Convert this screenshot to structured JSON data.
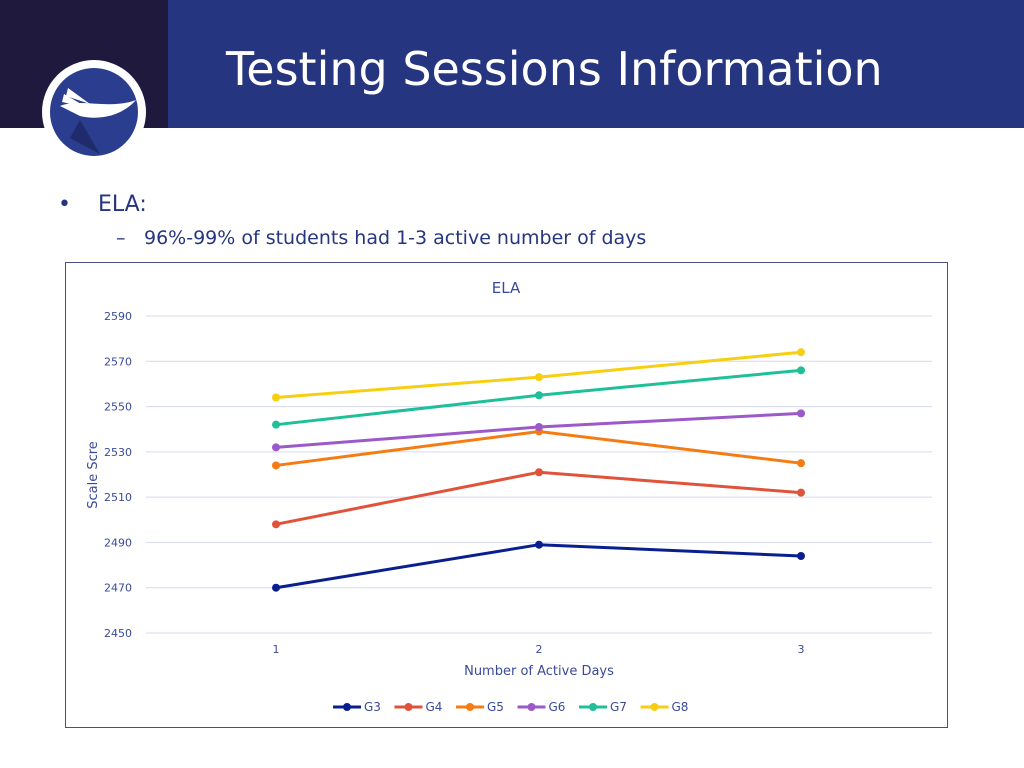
{
  "header": {
    "title": "Testing Sessions Information"
  },
  "content": {
    "bullet": "ELA:",
    "sub_bullet": "96%-99% of students had 1-3 active number of days"
  },
  "colors": {
    "header_bg": "#26357f",
    "logo_bg": "#1f1a3d",
    "text": "#26357f"
  },
  "chart_data": {
    "type": "line",
    "title": "ELA",
    "xlabel": "Number of Active Days",
    "ylabel": "Scale Scre",
    "x": [
      "1",
      "2",
      "3"
    ],
    "ylim": [
      2450,
      2590
    ],
    "yticks": [
      2450,
      2470,
      2490,
      2510,
      2530,
      2550,
      2570,
      2590
    ],
    "grid": true,
    "legend_position": "bottom",
    "series": [
      {
        "name": "G3",
        "color": "#0a1f8f",
        "values": [
          2470,
          2489,
          2484
        ]
      },
      {
        "name": "G4",
        "color": "#e0533a",
        "values": [
          2498,
          2521,
          2512
        ]
      },
      {
        "name": "G5",
        "color": "#f57c13",
        "values": [
          2524,
          2539,
          2525
        ]
      },
      {
        "name": "G6",
        "color": "#9b59c9",
        "values": [
          2532,
          2541,
          2547
        ]
      },
      {
        "name": "G7",
        "color": "#1fbf9a",
        "values": [
          2542,
          2555,
          2566
        ]
      },
      {
        "name": "G8",
        "color": "#f7cf10",
        "values": [
          2554,
          2563,
          2574
        ]
      }
    ]
  }
}
